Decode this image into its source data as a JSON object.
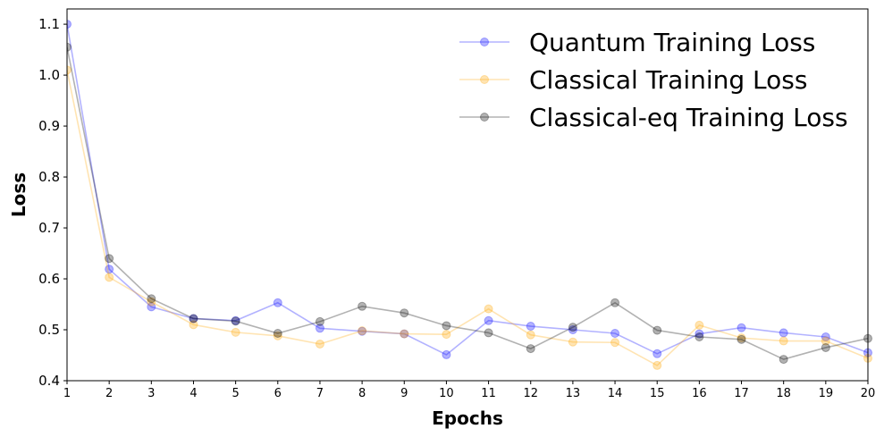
{
  "chart_data": {
    "type": "line",
    "title": "",
    "xlabel": "Epochs",
    "ylabel": "Loss",
    "x": [
      1,
      2,
      3,
      4,
      5,
      6,
      7,
      8,
      9,
      10,
      11,
      12,
      13,
      14,
      15,
      16,
      17,
      18,
      19,
      20
    ],
    "xlim": [
      1,
      20
    ],
    "ylim": [
      0.4,
      1.13
    ],
    "xticks": [
      "1",
      "2",
      "3",
      "4",
      "5",
      "6",
      "7",
      "8",
      "9",
      "10",
      "11",
      "12",
      "13",
      "14",
      "15",
      "16",
      "17",
      "18",
      "19",
      "20"
    ],
    "yticks": [
      "0.4",
      "0.5",
      "0.6",
      "0.7",
      "0.8",
      "0.9",
      "1.0",
      "1.1"
    ],
    "ytick_values": [
      0.4,
      0.5,
      0.6,
      0.7,
      0.8,
      0.9,
      1.0,
      1.1
    ],
    "grid": false,
    "legend_position": "top-right",
    "series": [
      {
        "name": "Quantum Training Loss",
        "color": "#0000ff",
        "values": [
          1.1,
          0.619,
          0.545,
          0.522,
          0.518,
          0.553,
          0.503,
          0.497,
          0.492,
          0.451,
          0.518,
          0.507,
          0.5,
          0.493,
          0.453,
          0.492,
          0.504,
          0.494,
          0.486,
          0.455
        ]
      },
      {
        "name": "Classical Training Loss",
        "color": "#ffa500",
        "values": [
          1.01,
          0.603,
          0.555,
          0.51,
          0.495,
          0.488,
          0.472,
          0.498,
          0.492,
          0.491,
          0.541,
          0.49,
          0.476,
          0.475,
          0.43,
          0.509,
          0.484,
          0.478,
          0.478,
          0.444
        ]
      },
      {
        "name": "Classical-eq Training Loss",
        "color": "#000000",
        "values": [
          1.055,
          0.64,
          0.561,
          0.522,
          0.517,
          0.493,
          0.516,
          0.546,
          0.533,
          0.508,
          0.494,
          0.463,
          0.505,
          0.553,
          0.499,
          0.486,
          0.481,
          0.442,
          0.465,
          0.483
        ]
      }
    ]
  }
}
